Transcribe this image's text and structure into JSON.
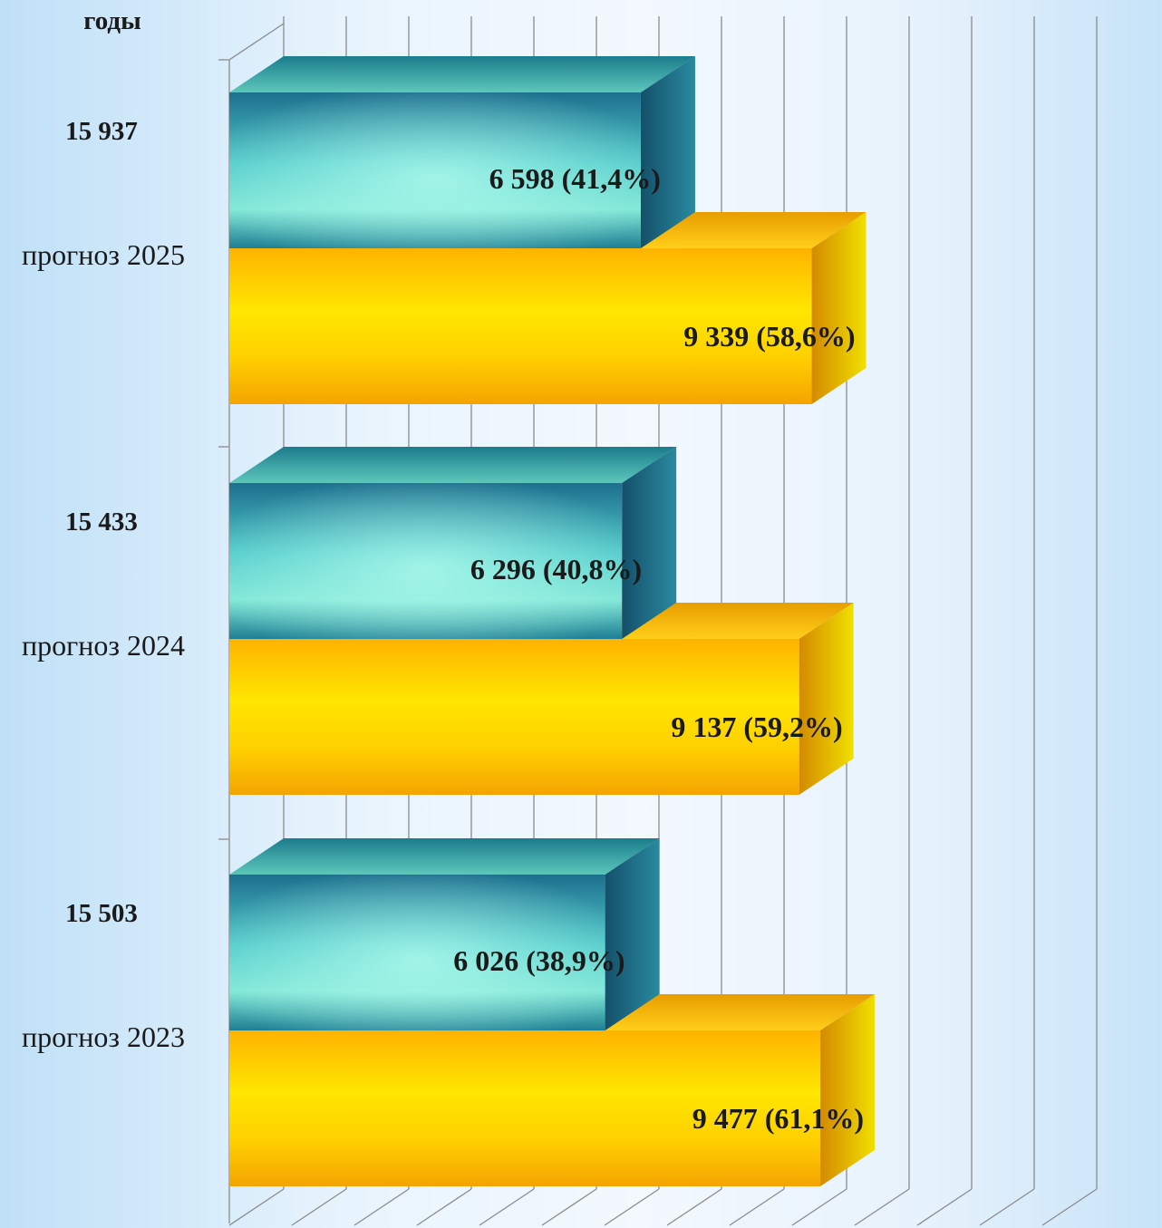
{
  "chart_data": {
    "type": "bar",
    "orientation": "horizontal",
    "style": "3d",
    "axis_title": "годы",
    "categories": [
      "прогноз 2025",
      "прогноз 2024",
      "прогноз 2023"
    ],
    "totals": [
      "15 937",
      "15 433",
      "15 503"
    ],
    "series": [
      {
        "color": "#1f8fa6",
        "values": [
          6598,
          6296,
          6026
        ],
        "labels": [
          "6 598 (41,4%)",
          "6 296 (40,8%)",
          "6 026 (38,9%)"
        ]
      },
      {
        "color": "#ffc000",
        "values": [
          9339,
          9137,
          9477
        ],
        "labels": [
          "9 339 (58,6%)",
          "9 137 (59,2%)",
          "9 477 (61,1%)"
        ]
      }
    ],
    "xlim": [
      0,
      16000
    ],
    "grid": true,
    "legend": "none"
  }
}
